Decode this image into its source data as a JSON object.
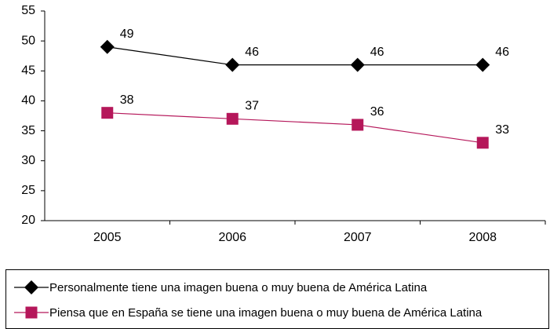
{
  "chart_data": {
    "type": "line",
    "categories": [
      "2005",
      "2006",
      "2007",
      "2008"
    ],
    "series": [
      {
        "name": "Personalmente tiene una imagen buena o muy buena de América Latina",
        "color": "#000000",
        "marker": "diamond",
        "values": [
          49,
          46,
          46,
          46
        ]
      },
      {
        "name": "Piensa que en España se tiene una imagen buena o muy buena de América Latina",
        "color": "#b5175a",
        "marker": "square",
        "values": [
          38,
          37,
          36,
          33
        ]
      }
    ],
    "ylim": [
      20,
      55
    ],
    "yticks": [
      20,
      25,
      30,
      35,
      40,
      45,
      50,
      55
    ],
    "grid": false,
    "legend": "bottom"
  }
}
